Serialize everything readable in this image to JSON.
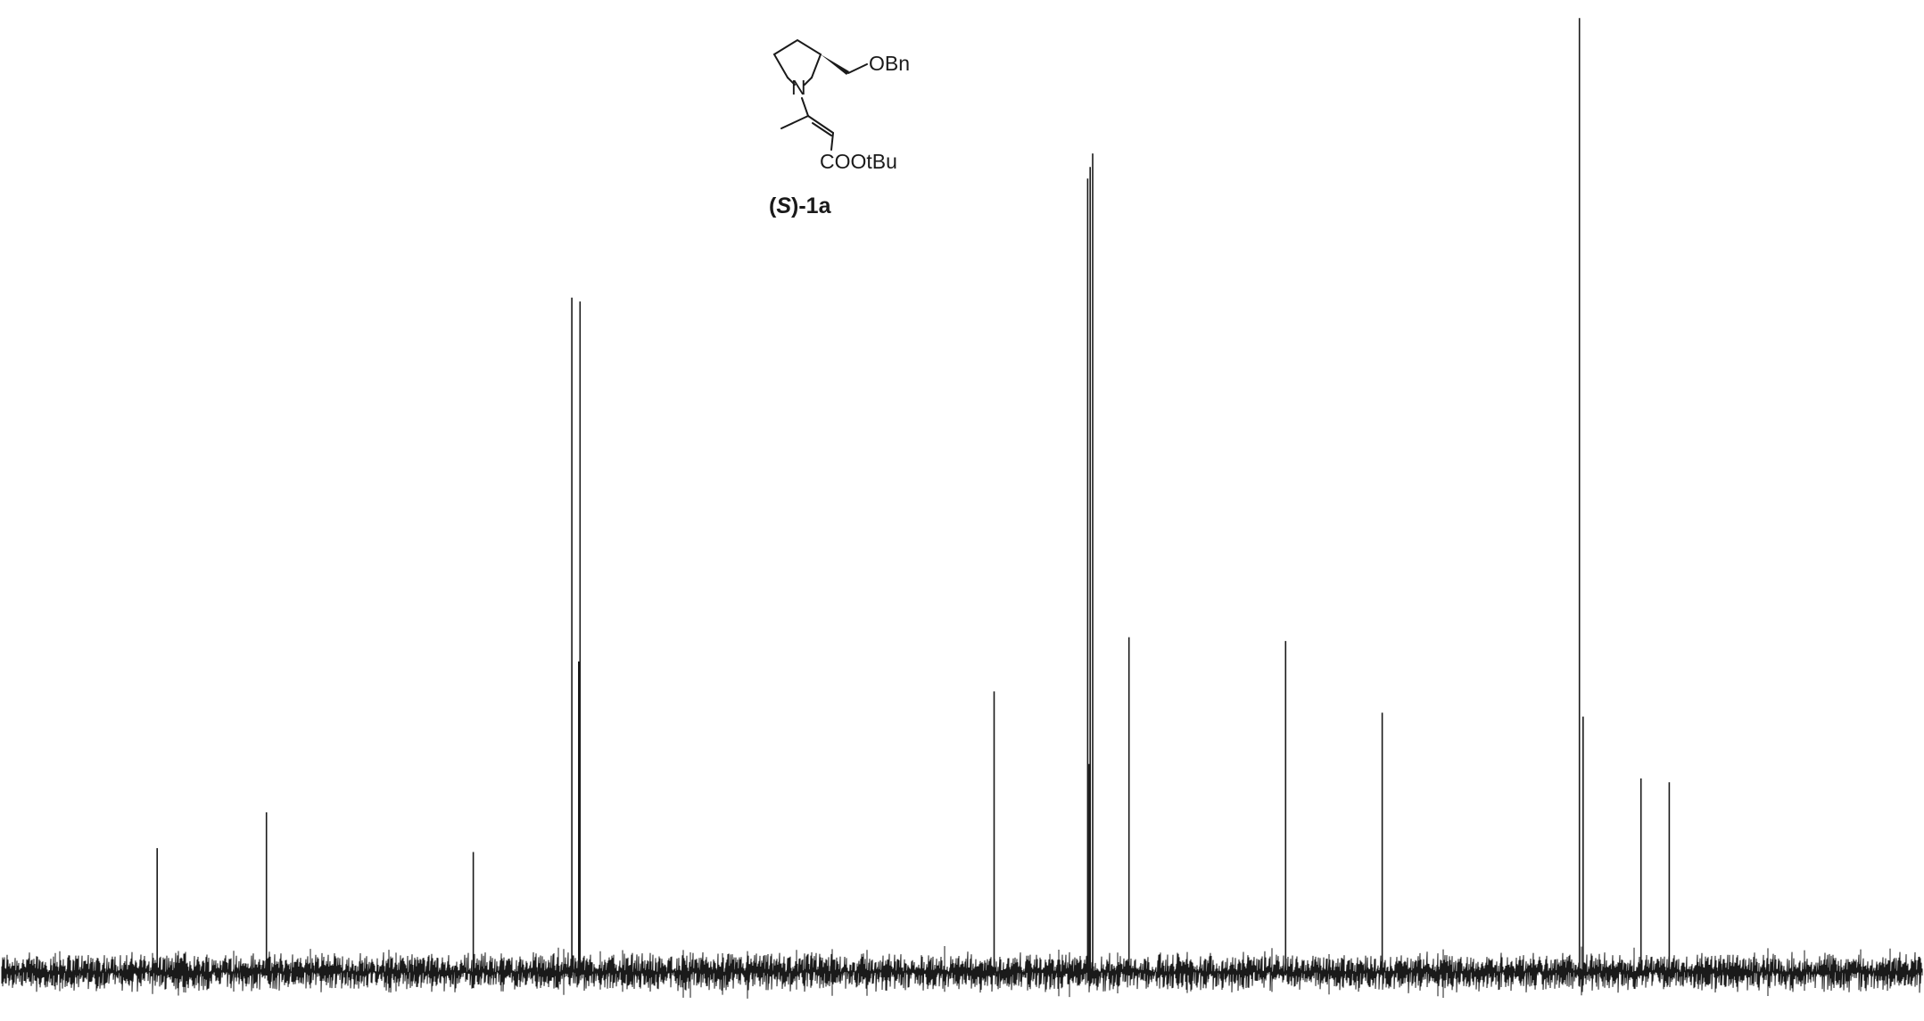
{
  "chart_data": {
    "type": "line",
    "title": "",
    "xlabel": "",
    "ylabel": "",
    "colors": {
      "trace": "#1a1a1a",
      "background": "#ffffff"
    },
    "grid": false,
    "legend": "none",
    "peaks": [
      {
        "x": 0.0817,
        "height": 0.128
      },
      {
        "x": 0.1385,
        "height": 0.165
      },
      {
        "x": 0.246,
        "height": 0.124
      },
      {
        "x": 0.2972,
        "height": 0.697
      },
      {
        "x": 0.3008,
        "height": 0.321
      },
      {
        "x": 0.3015,
        "height": 0.693
      },
      {
        "x": 0.5167,
        "height": 0.29
      },
      {
        "x": 0.5653,
        "height": 0.82
      },
      {
        "x": 0.5666,
        "height": 0.832
      },
      {
        "x": 0.5679,
        "height": 0.846
      },
      {
        "x": 0.566,
        "height": 0.215
      },
      {
        "x": 0.5868,
        "height": 0.346
      },
      {
        "x": 0.6682,
        "height": 0.342
      },
      {
        "x": 0.7184,
        "height": 0.268
      },
      {
        "x": 0.8209,
        "height": 0.986
      },
      {
        "x": 0.8228,
        "height": 0.264
      },
      {
        "x": 0.8529,
        "height": 0.2
      },
      {
        "x": 0.8676,
        "height": 0.196
      }
    ]
  },
  "structure": {
    "substituent_label": "OBn",
    "nitrogen_label": "N",
    "ester_label": "COOtBu",
    "compound_label_paren_open": "(",
    "compound_label_config": "S",
    "compound_label_rest": ")-1a"
  }
}
